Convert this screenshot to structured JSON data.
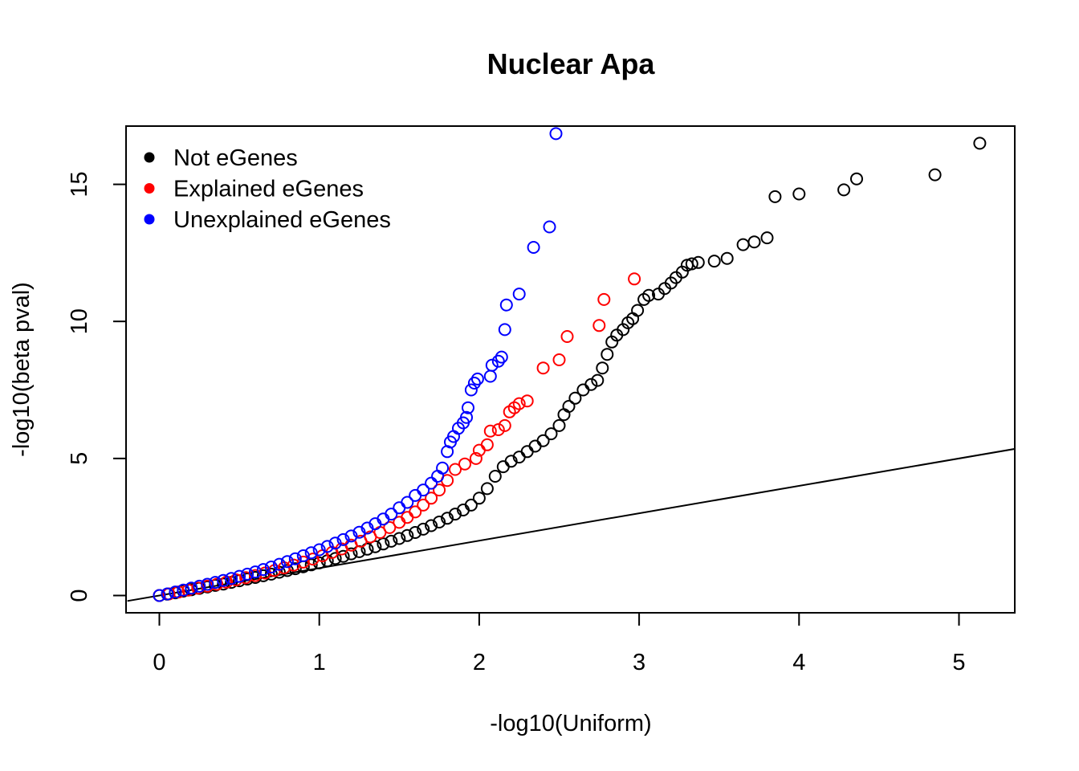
{
  "chart_data": {
    "type": "scatter",
    "title": "Nuclear Apa",
    "xlabel": "-log10(Uniform)",
    "ylabel": "-log10(beta pval)",
    "xlim": [
      -0.2,
      5.35
    ],
    "ylim": [
      -0.6,
      17.2
    ],
    "x_ticks": [
      "0",
      "1",
      "2",
      "3",
      "4",
      "5"
    ],
    "y_ticks": [
      "0",
      "5",
      "10",
      "15"
    ],
    "grid": false,
    "legend_position": "top-left",
    "reference_line": {
      "type": "identity",
      "x": [
        -0.2,
        5.35
      ],
      "y": [
        -0.2,
        5.35
      ]
    },
    "series": [
      {
        "name": "Not eGenes",
        "color": "#000000",
        "marker": "open-circle",
        "points": [
          [
            0.0,
            0.0
          ],
          [
            0.05,
            0.05
          ],
          [
            0.1,
            0.1
          ],
          [
            0.15,
            0.16
          ],
          [
            0.2,
            0.21
          ],
          [
            0.25,
            0.26
          ],
          [
            0.3,
            0.31
          ],
          [
            0.35,
            0.37
          ],
          [
            0.4,
            0.42
          ],
          [
            0.45,
            0.48
          ],
          [
            0.5,
            0.54
          ],
          [
            0.55,
            0.6
          ],
          [
            0.6,
            0.66
          ],
          [
            0.65,
            0.72
          ],
          [
            0.7,
            0.78
          ],
          [
            0.75,
            0.85
          ],
          [
            0.8,
            0.91
          ],
          [
            0.85,
            0.98
          ],
          [
            0.9,
            1.05
          ],
          [
            0.95,
            1.12
          ],
          [
            1.0,
            1.19
          ],
          [
            1.05,
            1.27
          ],
          [
            1.1,
            1.35
          ],
          [
            1.15,
            1.43
          ],
          [
            1.2,
            1.52
          ],
          [
            1.25,
            1.6
          ],
          [
            1.3,
            1.69
          ],
          [
            1.35,
            1.78
          ],
          [
            1.4,
            1.88
          ],
          [
            1.45,
            1.98
          ],
          [
            1.5,
            2.08
          ],
          [
            1.55,
            2.19
          ],
          [
            1.6,
            2.3
          ],
          [
            1.65,
            2.42
          ],
          [
            1.7,
            2.55
          ],
          [
            1.75,
            2.68
          ],
          [
            1.8,
            2.82
          ],
          [
            1.85,
            2.97
          ],
          [
            1.9,
            3.12
          ],
          [
            1.95,
            3.3
          ],
          [
            2.0,
            3.55
          ],
          [
            2.05,
            3.9
          ],
          [
            2.1,
            4.35
          ],
          [
            2.15,
            4.7
          ],
          [
            2.2,
            4.9
          ],
          [
            2.25,
            5.05
          ],
          [
            2.3,
            5.25
          ],
          [
            2.35,
            5.45
          ],
          [
            2.4,
            5.65
          ],
          [
            2.45,
            5.9
          ],
          [
            2.5,
            6.2
          ],
          [
            2.53,
            6.6
          ],
          [
            2.56,
            6.9
          ],
          [
            2.6,
            7.2
          ],
          [
            2.65,
            7.5
          ],
          [
            2.7,
            7.7
          ],
          [
            2.74,
            7.85
          ],
          [
            2.77,
            8.3
          ],
          [
            2.8,
            8.8
          ],
          [
            2.83,
            9.25
          ],
          [
            2.86,
            9.5
          ],
          [
            2.9,
            9.7
          ],
          [
            2.93,
            9.95
          ],
          [
            2.96,
            10.1
          ],
          [
            2.99,
            10.4
          ],
          [
            3.03,
            10.8
          ],
          [
            3.06,
            10.95
          ],
          [
            3.12,
            11.0
          ],
          [
            3.16,
            11.2
          ],
          [
            3.2,
            11.4
          ],
          [
            3.23,
            11.6
          ],
          [
            3.27,
            11.8
          ],
          [
            3.3,
            12.05
          ],
          [
            3.33,
            12.1
          ],
          [
            3.37,
            12.15
          ],
          [
            3.47,
            12.2
          ],
          [
            3.55,
            12.3
          ],
          [
            3.65,
            12.8
          ],
          [
            3.72,
            12.9
          ],
          [
            3.8,
            13.05
          ],
          [
            3.85,
            14.55
          ],
          [
            4.0,
            14.65
          ],
          [
            4.28,
            14.8
          ],
          [
            4.36,
            15.2
          ],
          [
            4.85,
            15.35
          ],
          [
            5.13,
            16.5
          ]
        ]
      },
      {
        "name": "Explained eGenes",
        "color": "#ff0000",
        "marker": "open-circle",
        "points": [
          [
            0.0,
            0.0
          ],
          [
            0.06,
            0.06
          ],
          [
            0.12,
            0.13
          ],
          [
            0.18,
            0.2
          ],
          [
            0.24,
            0.27
          ],
          [
            0.3,
            0.34
          ],
          [
            0.36,
            0.41
          ],
          [
            0.42,
            0.49
          ],
          [
            0.48,
            0.57
          ],
          [
            0.54,
            0.65
          ],
          [
            0.6,
            0.73
          ],
          [
            0.66,
            0.82
          ],
          [
            0.72,
            0.91
          ],
          [
            0.78,
            1.01
          ],
          [
            0.84,
            1.11
          ],
          [
            0.9,
            1.22
          ],
          [
            0.96,
            1.33
          ],
          [
            1.02,
            1.45
          ],
          [
            1.08,
            1.57
          ],
          [
            1.14,
            1.7
          ],
          [
            1.2,
            1.84
          ],
          [
            1.26,
            1.98
          ],
          [
            1.32,
            2.14
          ],
          [
            1.38,
            2.3
          ],
          [
            1.44,
            2.48
          ],
          [
            1.5,
            2.67
          ],
          [
            1.55,
            2.85
          ],
          [
            1.6,
            3.05
          ],
          [
            1.65,
            3.3
          ],
          [
            1.7,
            3.55
          ],
          [
            1.75,
            3.85
          ],
          [
            1.8,
            4.2
          ],
          [
            1.85,
            4.6
          ],
          [
            1.91,
            4.8
          ],
          [
            1.98,
            5.0
          ],
          [
            2.0,
            5.3
          ],
          [
            2.05,
            5.5
          ],
          [
            2.07,
            6.0
          ],
          [
            2.12,
            6.05
          ],
          [
            2.16,
            6.2
          ],
          [
            2.19,
            6.7
          ],
          [
            2.22,
            6.85
          ],
          [
            2.25,
            7.0
          ],
          [
            2.3,
            7.1
          ],
          [
            2.4,
            8.3
          ],
          [
            2.5,
            8.6
          ],
          [
            2.55,
            9.45
          ],
          [
            2.75,
            9.85
          ],
          [
            2.78,
            10.8
          ],
          [
            2.97,
            11.55
          ]
        ]
      },
      {
        "name": "Unexplained eGenes",
        "color": "#0000ff",
        "marker": "open-circle",
        "points": [
          [
            0.0,
            0.0
          ],
          [
            0.05,
            0.06
          ],
          [
            0.1,
            0.13
          ],
          [
            0.15,
            0.2
          ],
          [
            0.2,
            0.27
          ],
          [
            0.25,
            0.34
          ],
          [
            0.3,
            0.41
          ],
          [
            0.35,
            0.48
          ],
          [
            0.4,
            0.55
          ],
          [
            0.45,
            0.62
          ],
          [
            0.5,
            0.7
          ],
          [
            0.55,
            0.78
          ],
          [
            0.6,
            0.86
          ],
          [
            0.65,
            0.95
          ],
          [
            0.7,
            1.04
          ],
          [
            0.75,
            1.14
          ],
          [
            0.8,
            1.24
          ],
          [
            0.85,
            1.34
          ],
          [
            0.9,
            1.45
          ],
          [
            0.95,
            1.56
          ],
          [
            1.0,
            1.67
          ],
          [
            1.05,
            1.79
          ],
          [
            1.1,
            1.91
          ],
          [
            1.15,
            2.04
          ],
          [
            1.2,
            2.17
          ],
          [
            1.25,
            2.31
          ],
          [
            1.3,
            2.46
          ],
          [
            1.35,
            2.62
          ],
          [
            1.4,
            2.79
          ],
          [
            1.45,
            2.97
          ],
          [
            1.5,
            3.2
          ],
          [
            1.55,
            3.4
          ],
          [
            1.6,
            3.65
          ],
          [
            1.65,
            3.85
          ],
          [
            1.7,
            4.1
          ],
          [
            1.74,
            4.35
          ],
          [
            1.77,
            4.65
          ],
          [
            1.8,
            5.25
          ],
          [
            1.82,
            5.6
          ],
          [
            1.84,
            5.8
          ],
          [
            1.87,
            6.1
          ],
          [
            1.9,
            6.3
          ],
          [
            1.92,
            6.5
          ],
          [
            1.93,
            6.85
          ],
          [
            1.95,
            7.5
          ],
          [
            1.97,
            7.75
          ],
          [
            1.99,
            7.9
          ],
          [
            2.07,
            8.0
          ],
          [
            2.08,
            8.4
          ],
          [
            2.12,
            8.55
          ],
          [
            2.14,
            8.7
          ],
          [
            2.16,
            9.7
          ],
          [
            2.17,
            10.6
          ],
          [
            2.25,
            11.0
          ],
          [
            2.34,
            12.7
          ],
          [
            2.44,
            13.45
          ],
          [
            2.48,
            16.85
          ]
        ]
      }
    ]
  }
}
